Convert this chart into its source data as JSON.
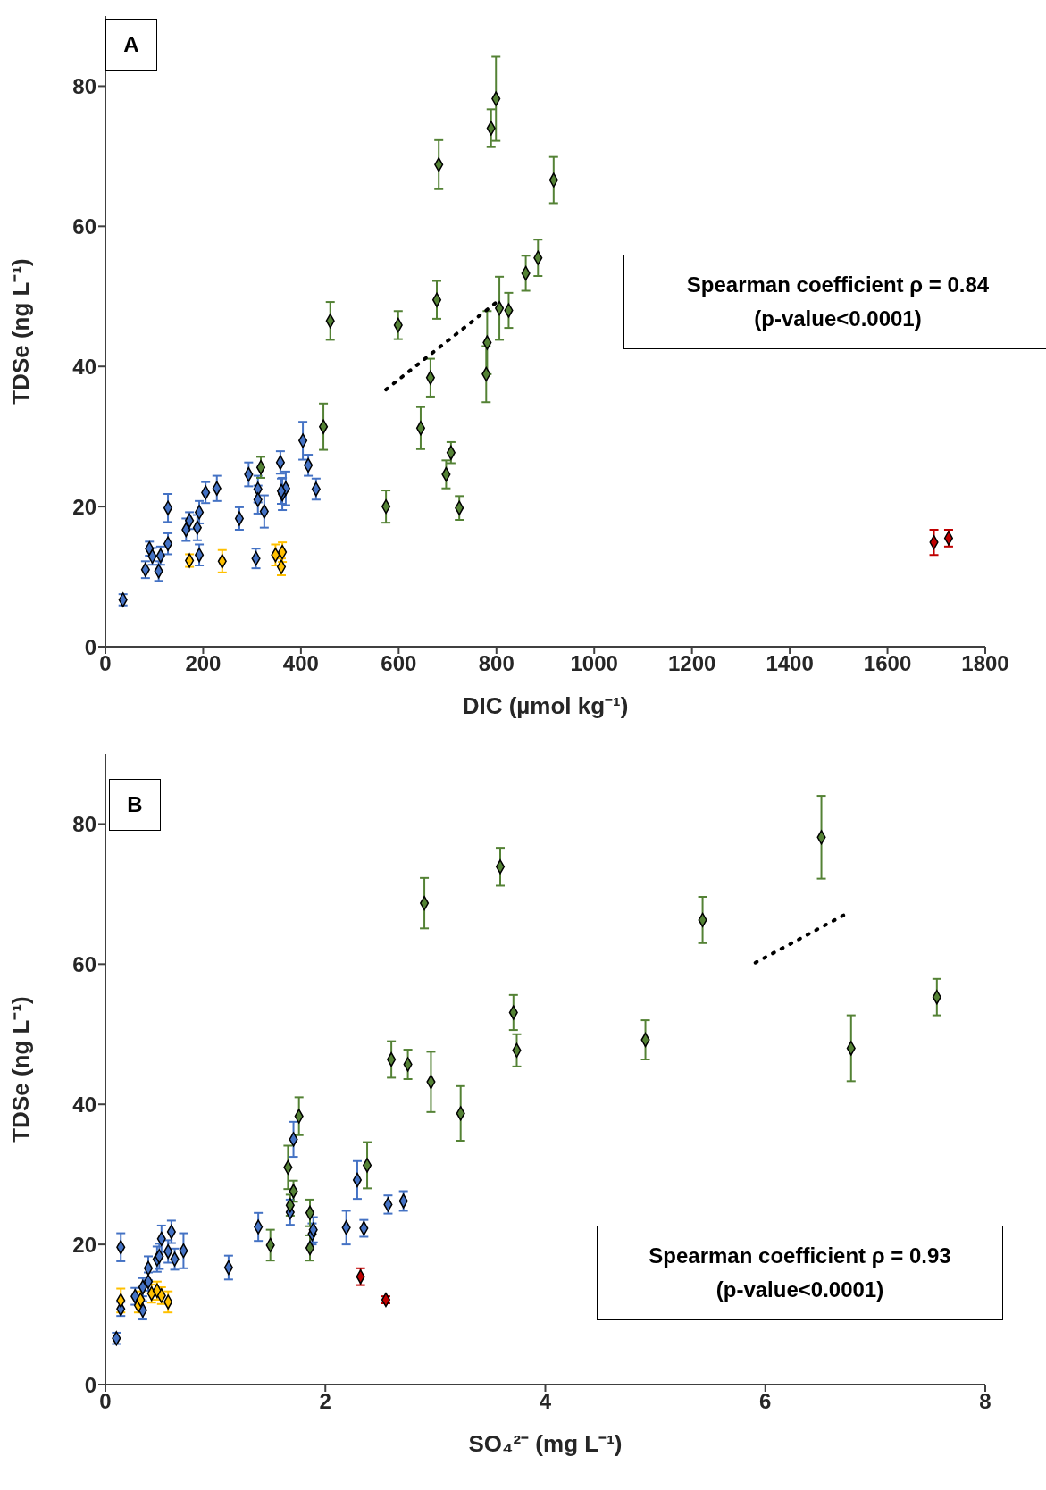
{
  "chart_data": [
    {
      "type": "scatter",
      "xlabel": "DIC (µmol kg⁻¹)",
      "ylabel": "TDSe (ng L⁻¹)",
      "xlim": [
        0,
        1800
      ],
      "xticks": [
        0,
        200,
        400,
        600,
        800,
        1000,
        1200,
        1400,
        1600,
        1800
      ],
      "ylim": [
        0,
        90
      ],
      "yticks": [
        0,
        20,
        40,
        60,
        80
      ],
      "marker": "diamond",
      "annotations": [
        "A",
        "Spearman coefficient ρ = 0.84",
        "(p-value<0.0001)"
      ],
      "series": [
        {
          "color": "#4472c4",
          "x": [
            36,
            82,
            90,
            96,
            109,
            113,
            128,
            128,
            165,
            172,
            188,
            192,
            192,
            205,
            228,
            274,
            293,
            308,
            312,
            312,
            325,
            358,
            362,
            369,
            360,
            404,
            415,
            431
          ],
          "values": [
            6.7,
            11,
            14,
            12.9,
            10.8,
            13,
            14.7,
            19.8,
            16.7,
            18,
            17,
            19.2,
            13.1,
            22,
            22.6,
            18.3,
            24.6,
            12.6,
            22.5,
            21,
            19.3,
            26.3,
            21.8,
            22.6,
            22.2,
            29.4,
            25.9,
            22.5
          ],
          "errors": [
            0.8,
            1.2,
            1,
            1.2,
            1.4,
            1.3,
            1.5,
            2,
            1.6,
            1.2,
            1.8,
            1.6,
            1.5,
            1.5,
            1.8,
            1.6,
            1.7,
            1.4,
            1.9,
            2,
            2.3,
            1.6,
            2.3,
            2.4,
            1.8,
            2.7,
            1.5,
            1.5
          ]
        },
        {
          "color": "#ffc000",
          "x": [
            172,
            239,
            348,
            362,
            360
          ],
          "values": [
            12.3,
            12.2,
            13.1,
            13.5,
            11.4
          ],
          "errors": [
            0.9,
            1.6,
            1.5,
            1.4,
            1.2
          ]
        },
        {
          "color": "#548235",
          "x": [
            318,
            446,
            460,
            574,
            599,
            645,
            665,
            678,
            682,
            697,
            707,
            724,
            779,
            781,
            789,
            799,
            806,
            825,
            860,
            885,
            917
          ],
          "values": [
            25.6,
            31.4,
            46.5,
            20,
            45.9,
            31.2,
            38.4,
            49.5,
            68.8,
            24.6,
            27.7,
            19.8,
            38.9,
            43.4,
            74,
            78.2,
            48.3,
            48,
            53.3,
            55.5,
            66.6
          ],
          "errors": [
            1.5,
            3.3,
            2.7,
            2.3,
            2,
            3,
            2.7,
            2.7,
            3.5,
            2,
            1.5,
            1.7,
            4,
            4.5,
            2.7,
            6,
            4.5,
            2.5,
            2.5,
            2.6,
            3.3
          ]
        },
        {
          "color": "#c00000",
          "x": [
            1695,
            1725
          ],
          "values": [
            14.9,
            15.5
          ],
          "errors": [
            1.8,
            1.2
          ]
        },
        {
          "type": "line",
          "color": "#000000",
          "line_style": "dotted",
          "marker": "none",
          "x": [
            574,
            808
          ],
          "values": [
            36.7,
            49.6
          ]
        }
      ]
    },
    {
      "type": "scatter",
      "xlabel": "SO₄²⁻ (mg L⁻¹)",
      "ylabel": "TDSe (ng L⁻¹)",
      "xlim": [
        0,
        8
      ],
      "xticks": [
        0,
        2,
        4,
        6,
        8
      ],
      "ylim": [
        0,
        90
      ],
      "yticks": [
        0,
        20,
        40,
        60,
        80
      ],
      "marker": "diamond",
      "annotations": [
        "B",
        "Spearman coefficient ρ = 0.93",
        "(p-value<0.0001)"
      ],
      "series": [
        {
          "color": "#4472c4",
          "x": [
            0.1,
            0.14,
            0.14,
            0.27,
            0.34,
            0.34,
            0.39,
            0.39,
            0.47,
            0.49,
            0.51,
            0.57,
            0.6,
            0.63,
            0.71,
            1.12,
            1.39,
            1.68,
            1.71,
            1.88,
            1.89,
            2.19,
            2.29,
            2.35,
            2.57,
            2.71
          ],
          "values": [
            6.6,
            19.6,
            10.8,
            12.6,
            13.9,
            10.6,
            14.7,
            16.6,
            17.9,
            18.3,
            20.8,
            19,
            21.8,
            17.9,
            19.1,
            16.7,
            22.5,
            24.6,
            35,
            21.5,
            22.1,
            22.4,
            29.2,
            22.3,
            25.7,
            26.2
          ],
          "errors": [
            0.8,
            2,
            1,
            1.2,
            1.3,
            1.3,
            1.3,
            1.7,
            1.8,
            1.8,
            1.9,
            1.6,
            1.6,
            1.5,
            2.5,
            1.7,
            2,
            1.8,
            2.5,
            1.5,
            1.8,
            2.4,
            2.7,
            1.2,
            1.3,
            1.4
          ]
        },
        {
          "color": "#ffc000",
          "x": [
            0.14,
            0.3,
            0.32,
            0.42,
            0.47,
            0.51,
            0.57
          ],
          "values": [
            12,
            11.3,
            12.1,
            13,
            13.4,
            12.7,
            11.8
          ],
          "errors": [
            1.7,
            1,
            1.2,
            1.3,
            1.3,
            1.2,
            1.5
          ]
        },
        {
          "color": "#548235",
          "x": [
            1.5,
            1.66,
            1.68,
            1.71,
            1.76,
            1.86,
            1.86,
            2.38,
            2.6,
            2.75,
            2.9,
            2.96,
            3.23,
            3.59,
            3.71,
            3.74,
            4.91,
            5.43,
            6.51,
            6.78,
            7.56
          ],
          "values": [
            19.9,
            31,
            25.6,
            27.6,
            38.3,
            24.5,
            19.5,
            31.3,
            46.4,
            45.7,
            68.7,
            43.2,
            38.7,
            73.9,
            53.1,
            47.7,
            49.2,
            66.3,
            78.1,
            48,
            55.3
          ],
          "errors": [
            2.2,
            3.1,
            1.5,
            1.5,
            2.7,
            1.9,
            1.8,
            3.3,
            2.6,
            2.1,
            3.6,
            4.3,
            3.9,
            2.7,
            2.5,
            2.3,
            2.8,
            3.3,
            5.9,
            4.7,
            2.6
          ]
        },
        {
          "color": "#c00000",
          "x": [
            2.32,
            2.55
          ],
          "values": [
            15.4,
            12.1
          ],
          "errors": [
            1.2,
            0.5
          ]
        },
        {
          "type": "line",
          "color": "#000000",
          "line_style": "dotted",
          "marker": "none",
          "x": [
            5.91,
            6.75
          ],
          "values": [
            60.2,
            67.3
          ]
        }
      ]
    }
  ]
}
